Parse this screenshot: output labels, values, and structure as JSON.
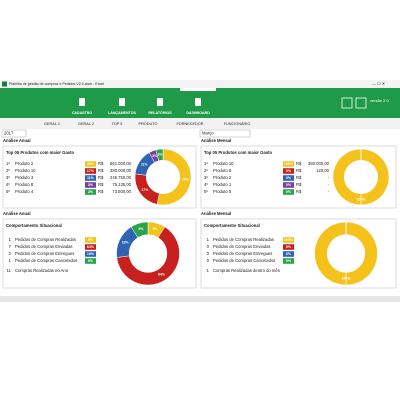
{
  "window": {
    "title": "Planilha de gestão de compras e Pedidos V2.0.xlsm - Excel",
    "version": "versão 2.0"
  },
  "nav": [
    "CADASTRO",
    "LANÇAMENTOS",
    "RELATÓRIOS",
    "DASHBOARD"
  ],
  "tabs": [
    "GERAL 1",
    "GERAL 2",
    "TOP 5",
    "PRODUTO",
    "FORNECEDOR",
    "FUNCIONÁRIO"
  ],
  "filters": {
    "year": "2017",
    "month": "Março"
  },
  "panels": [
    {
      "section": "Análise Anual",
      "title": "Top 05 Produtos com maior Gasto",
      "rows": [
        {
          "rank": "1º",
          "name": "Produto 2",
          "share": 39,
          "share_label": "39%",
          "currency": "R$",
          "amount": "861.000,00",
          "color": "#f5c21b"
        },
        {
          "rank": "2º",
          "name": "Produto 10",
          "share": 17,
          "share_label": "17%",
          "currency": "R$",
          "amount": "380.000,00",
          "color": "#c8201f"
        },
        {
          "rank": "3º",
          "name": "Produto 3",
          "share": 11,
          "share_label": "11%",
          "currency": "R$",
          "amount": "245.750,00",
          "color": "#2f63b4"
        },
        {
          "rank": "4º",
          "name": "Produto 8",
          "share": 3,
          "share_label": "3%",
          "currency": "R$",
          "amount": "75.135,00",
          "color": "#7a3e9f"
        },
        {
          "rank": "5º",
          "name": "Produto 4",
          "share": 3,
          "share_label": "3%",
          "currency": "R$",
          "amount": "73.500,00",
          "color": "#2ba34b"
        }
      ]
    },
    {
      "section": "Análise Mensal",
      "title": "Top 05 Produtos com maior Gasto",
      "rows": [
        {
          "rank": "1º",
          "name": "Produto 10",
          "share": 100,
          "share_label": "100%",
          "currency": "R$",
          "amount": "380.000,00",
          "color": "#f5c21b"
        },
        {
          "rank": "2º",
          "name": "Produto 8",
          "share": 0,
          "share_label": "0%",
          "currency": "R$",
          "amount": "120,00",
          "color": "#c8201f"
        },
        {
          "rank": "3º",
          "name": "Produto 2",
          "share": 0,
          "share_label": "0%",
          "currency": "R$",
          "amount": "-",
          "color": "#2f63b4"
        },
        {
          "rank": "4º",
          "name": "Produto 1",
          "share": 0,
          "share_label": "0%",
          "currency": "R$",
          "amount": "-",
          "color": "#7a3e9f"
        },
        {
          "rank": "5º",
          "name": "Produto 5",
          "share": 0,
          "share_label": "0%",
          "currency": "R$",
          "amount": "-",
          "color": "#2ba34b"
        }
      ]
    },
    {
      "section": "Análise Anual",
      "title": "Comportamento Situacional",
      "rows": [
        {
          "count": 1,
          "name": "Pedidos de Compras Realizadas",
          "share": 9,
          "share_label": "9%",
          "color": "#f5c21b"
        },
        {
          "count": 7,
          "name": "Pedidos de Compras Enviadas",
          "share": 64,
          "share_label": "64%",
          "color": "#c8201f"
        },
        {
          "count": 2,
          "name": "Pedidos de Compras Entregues",
          "share": 18,
          "share_label": "18%",
          "color": "#2f63b4"
        },
        {
          "count": 1,
          "name": "Pedidos de Compras Cancelados",
          "share": 9,
          "share_label": "9%",
          "color": "#2ba34b"
        }
      ],
      "total": {
        "count": 11,
        "label": "Compras Realizadas no Ano"
      }
    },
    {
      "section": "Análise Mensal",
      "title": "Comportamento Situacional",
      "rows": [
        {
          "count": 1,
          "name": "Pedidos de Compras Realizadas",
          "share": 100,
          "share_label": "100%",
          "color": "#f5c21b"
        },
        {
          "count": 0,
          "name": "Pedidos de Compras Enviadas",
          "share": 0,
          "share_label": "0%",
          "color": "#c8201f"
        },
        {
          "count": 0,
          "name": "Pedidos de Compras Entregues",
          "share": 0,
          "share_label": "0%",
          "color": "#2f63b4"
        },
        {
          "count": 0,
          "name": "Pedidos de Compras Cancelados",
          "share": 0,
          "share_label": "0%",
          "color": "#2ba34b"
        }
      ],
      "total": {
        "count": 1,
        "label": "Compras Realizadas dentro do mês"
      }
    }
  ]
}
